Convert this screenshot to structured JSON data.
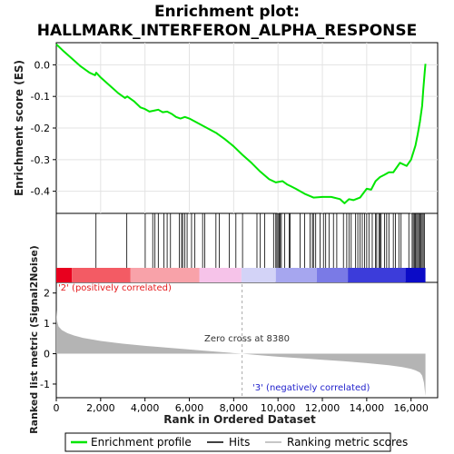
{
  "chart_data": {
    "type": "line",
    "title_line1": "Enrichment plot:",
    "title_line2": "HALLMARK_INTERFERON_ALPHA_RESPONSE",
    "ylabel_top": "Enrichment score (ES)",
    "ylabel_bottom": "Ranked list metric (Signal2Noise)",
    "xlabel": "Rank in Ordered Dataset",
    "x_ticks": [
      0,
      2000,
      4000,
      6000,
      8000,
      10000,
      12000,
      14000,
      16000
    ],
    "x_tick_labels": [
      "0",
      "2,000",
      "4,000",
      "6,000",
      "8,000",
      "10,000",
      "12,000",
      "14,000",
      "16,000"
    ],
    "xlim": [
      0,
      17200
    ],
    "es_ylim": [
      -0.47,
      0.07
    ],
    "es_ticks": [
      0.0,
      -0.1,
      -0.2,
      -0.3,
      -0.4
    ],
    "es_tick_labels": [
      "0.0",
      "-0.1",
      "-0.2",
      "-0.3",
      "-0.4"
    ],
    "metric_ylim": [
      -1.45,
      2.35
    ],
    "metric_ticks": [
      2,
      1,
      0,
      -1
    ],
    "metric_tick_labels": [
      "2",
      "1",
      "0",
      "-1"
    ],
    "n_genes": 16650,
    "es_curve": {
      "x": [
        0,
        300,
        700,
        1100,
        1500,
        1750,
        1800,
        2000,
        2400,
        2800,
        3100,
        3200,
        3500,
        3800,
        4000,
        4200,
        4400,
        4600,
        4800,
        5000,
        5200,
        5400,
        5600,
        5800,
        6000,
        6400,
        6800,
        7200,
        7600,
        8000,
        8400,
        8800,
        9200,
        9600,
        9900,
        10200,
        10400,
        10600,
        10800,
        11200,
        11600,
        12000,
        12400,
        12800,
        13000,
        13200,
        13400,
        13700,
        14000,
        14200,
        14400,
        14600,
        14800,
        15000,
        15200,
        15500,
        15800,
        16000,
        16200,
        16300,
        16400,
        16500,
        16550,
        16620,
        16650
      ],
      "y": [
        0.065,
        0.045,
        0.02,
        -0.005,
        -0.025,
        -0.033,
        -0.025,
        -0.04,
        -0.065,
        -0.09,
        -0.105,
        -0.1,
        -0.115,
        -0.135,
        -0.14,
        -0.148,
        -0.145,
        -0.142,
        -0.15,
        -0.148,
        -0.155,
        -0.165,
        -0.17,
        -0.165,
        -0.17,
        -0.185,
        -0.2,
        -0.215,
        -0.235,
        -0.258,
        -0.285,
        -0.31,
        -0.338,
        -0.362,
        -0.372,
        -0.368,
        -0.378,
        -0.385,
        -0.392,
        -0.408,
        -0.42,
        -0.418,
        -0.418,
        -0.425,
        -0.438,
        -0.425,
        -0.428,
        -0.42,
        -0.392,
        -0.395,
        -0.368,
        -0.355,
        -0.348,
        -0.34,
        -0.34,
        -0.31,
        -0.32,
        -0.3,
        -0.255,
        -0.22,
        -0.18,
        -0.13,
        -0.08,
        -0.02,
        0.003
      ]
    },
    "hits": [
      1790,
      3180,
      4010,
      4350,
      4450,
      4600,
      4850,
      5000,
      5150,
      5550,
      5650,
      5700,
      5800,
      5900,
      6100,
      6250,
      6600,
      6700,
      7200,
      7350,
      7800,
      8100,
      8400,
      9050,
      9200,
      9400,
      9800,
      9900,
      9950,
      10000,
      10050,
      10100,
      10150,
      10300,
      10500,
      10550,
      11000,
      11200,
      11450,
      11550,
      11600,
      11700,
      11900,
      12050,
      12150,
      12300,
      12500,
      12650,
      12950,
      13100,
      13200,
      13300,
      13500,
      13600,
      13700,
      13800,
      13900,
      14000,
      14100,
      14250,
      14400,
      14450,
      14550,
      14600,
      14650,
      14800,
      14900,
      15000,
      15200,
      15300,
      15450,
      15550,
      15900,
      16050,
      16100,
      16150,
      16200,
      16250,
      16300,
      16350,
      16400,
      16450,
      16500,
      16550,
      16600
    ],
    "metric_curve": {
      "x": [
        0,
        30,
        100,
        250,
        500,
        800,
        1200,
        2000,
        3000,
        4000,
        5000,
        6000,
        7000,
        8000,
        8380,
        9000,
        10000,
        11000,
        12000,
        13000,
        14000,
        15000,
        15600,
        16000,
        16200,
        16400,
        16500,
        16580,
        16650
      ],
      "y": [
        1.45,
        1.1,
        0.9,
        0.78,
        0.68,
        0.6,
        0.52,
        0.42,
        0.33,
        0.26,
        0.2,
        0.14,
        0.08,
        0.02,
        0.0,
        -0.04,
        -0.1,
        -0.15,
        -0.2,
        -0.25,
        -0.31,
        -0.38,
        -0.44,
        -0.5,
        -0.55,
        -0.62,
        -0.72,
        -0.95,
        -1.4
      ]
    },
    "bar_segments": [
      {
        "from": 0,
        "to": 700,
        "color": "#e8001e"
      },
      {
        "from": 700,
        "to": 3350,
        "color": "#f35b64"
      },
      {
        "from": 3350,
        "to": 6450,
        "color": "#f8a2a9"
      },
      {
        "from": 6450,
        "to": 8350,
        "color": "#f6c3e9"
      },
      {
        "from": 8350,
        "to": 9900,
        "color": "#d3d3f7"
      },
      {
        "from": 9900,
        "to": 11750,
        "color": "#a6a6ef"
      },
      {
        "from": 11750,
        "to": 13150,
        "color": "#7a7ae6"
      },
      {
        "from": 13150,
        "to": 15750,
        "color": "#3c3cda"
      },
      {
        "from": 15750,
        "to": 16650,
        "color": "#0b0bc7"
      }
    ],
    "annotations": {
      "pos_label": "'2' (positively correlated)",
      "neg_label": "'3' (negatively correlated)",
      "zero_cross": "Zero cross at 8380"
    },
    "zero_cross_rank": 8380,
    "legend": [
      "Enrichment profile",
      "Hits",
      "Ranking metric scores"
    ],
    "colors": {
      "es_line": "#00e600",
      "hits": "#000000",
      "metric_fill": "#b4b4b4",
      "pos_label": "#e41a1c",
      "neg_label": "#2222cc",
      "zero_line": "#aaaaaa"
    }
  }
}
